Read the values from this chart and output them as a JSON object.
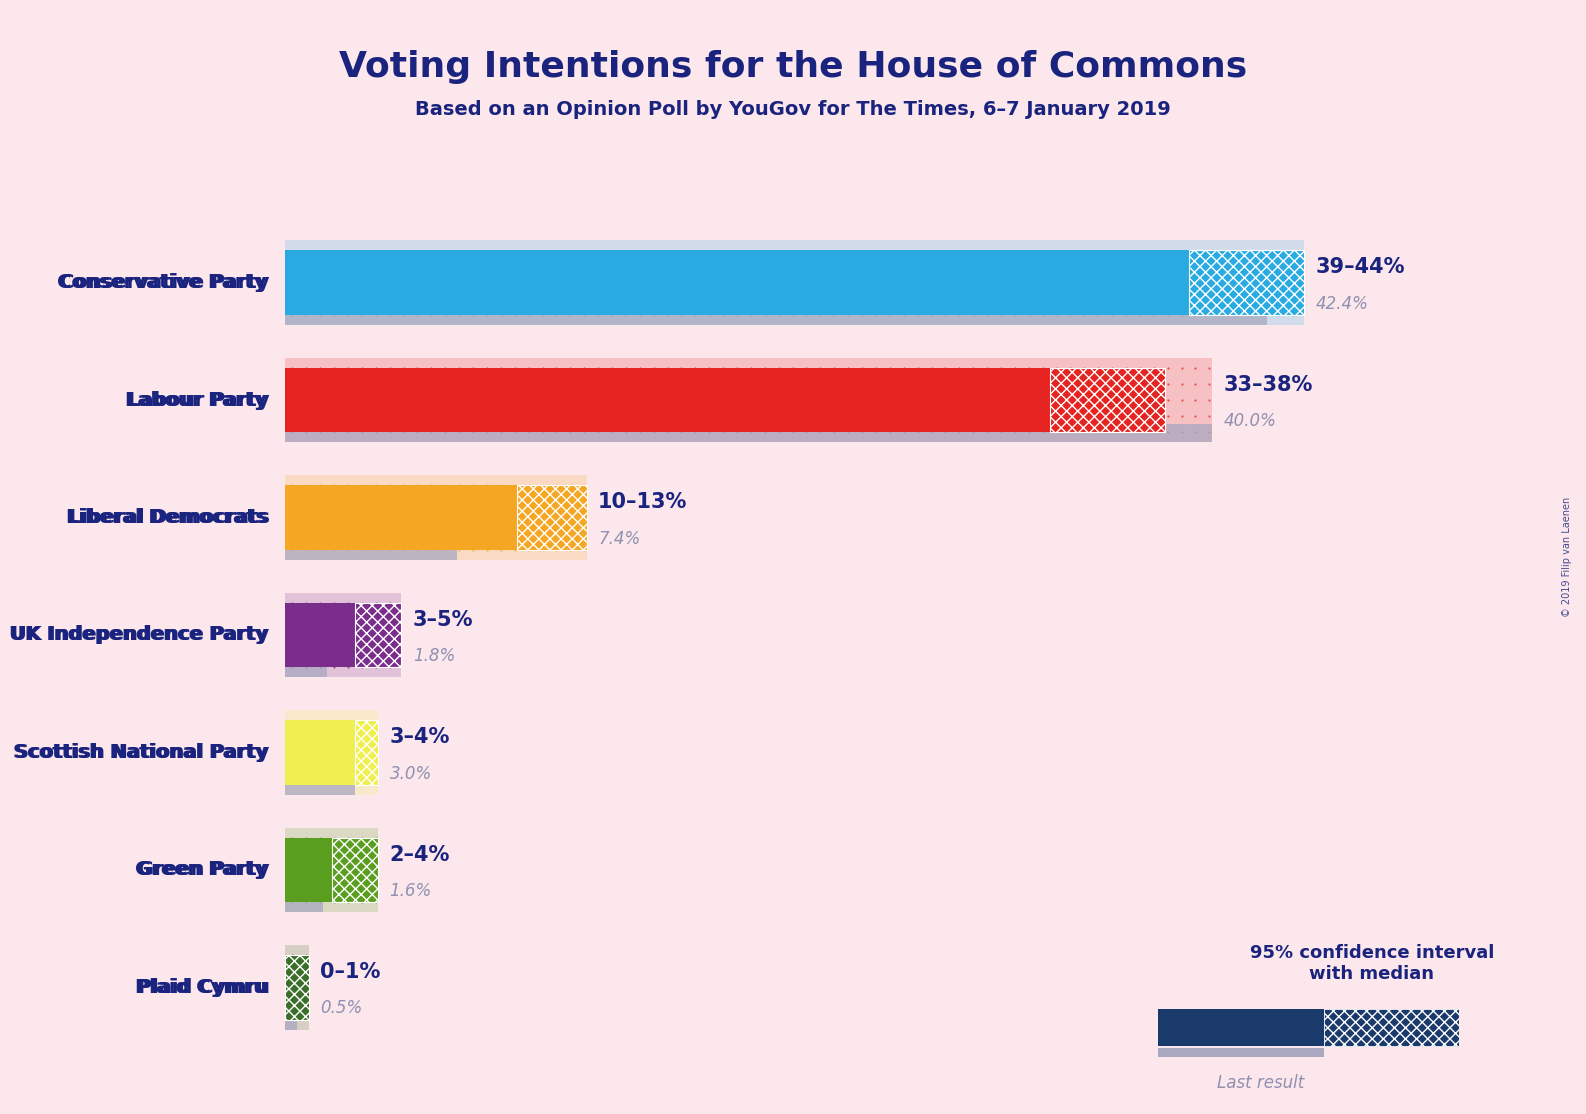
{
  "title": "Voting Intentions for the House of Commons",
  "subtitle": "Based on an Opinion Poll by YouGov for The Times, 6–7 January 2019",
  "copyright": "© 2019 Filip van Laenen",
  "background_color": "#fce8ec",
  "title_color": "#1a237e",
  "label_color": "#1a237e",
  "last_result_color": "#9090b0",
  "parties": [
    {
      "name": "Conservative Party",
      "ci_low": 39,
      "ci_high": 44,
      "last_result": 42.4,
      "color": "#29ABE2",
      "label": "39–44%",
      "label2": "42.4%"
    },
    {
      "name": "Labour Party",
      "ci_low": 33,
      "ci_high": 38,
      "last_result": 40.0,
      "color": "#E52421",
      "label": "33–38%",
      "label2": "40.0%"
    },
    {
      "name": "Liberal Democrats",
      "ci_low": 10,
      "ci_high": 13,
      "last_result": 7.4,
      "color": "#F5A623",
      "label": "10–13%",
      "label2": "7.4%"
    },
    {
      "name": "UK Independence Party",
      "ci_low": 3,
      "ci_high": 5,
      "last_result": 1.8,
      "color": "#7B2D8B",
      "label": "3–5%",
      "label2": "1.8%"
    },
    {
      "name": "Scottish National Party",
      "ci_low": 3,
      "ci_high": 4,
      "last_result": 3.0,
      "color": "#EFEF50",
      "label": "3–4%",
      "label2": "3.0%"
    },
    {
      "name": "Green Party",
      "ci_low": 2,
      "ci_high": 4,
      "last_result": 1.6,
      "color": "#5A9E20",
      "label": "2–4%",
      "label2": "1.6%"
    },
    {
      "name": "Plaid Cymru",
      "ci_low": 0,
      "ci_high": 1,
      "last_result": 0.5,
      "color": "#3B6E28",
      "label": "0–1%",
      "label2": "0.5%"
    }
  ],
  "legend_dark_blue": "#1a3a6b",
  "legend_ci_label": "95% confidence interval\nwith median",
  "legend_lr_label": "Last result"
}
